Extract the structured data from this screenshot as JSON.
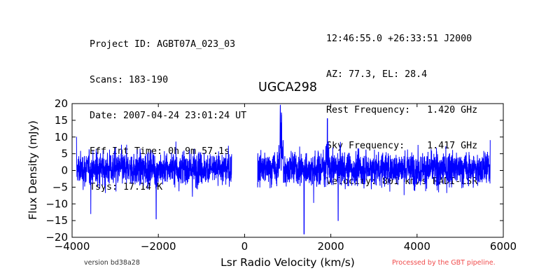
{
  "header": {
    "left": [
      "Project ID: AGBT07A_023_03",
      "Scans: 183-190",
      "Date: 2007-04-24 23:01:24 UT",
      "Eff Int Time: 0h 9m 57.1s",
      "Tsys: 17.14 K"
    ],
    "right": [
      "12:46:55.0 +26:33:51 J2000",
      "AZ: 77.3, EL: 28.4",
      "Rest Frequency:   1.420 GHz",
      "Sky Frequency:    1.417 GHz",
      "Velocity: 801 km/s RADI-LSR"
    ]
  },
  "footer": {
    "version": "version bd38a28",
    "pipeline": "Processed by the GBT pipeline."
  },
  "chart_data": {
    "type": "line",
    "title": "UGCA298",
    "xlabel": "Lsr Radio Velocity (km/s)",
    "ylabel": "Flux Density (mJy)",
    "xlim": [
      -4000,
      6000
    ],
    "ylim": [
      -20,
      20
    ],
    "xticks": [
      -4000,
      -2000,
      0,
      2000,
      4000,
      6000
    ],
    "yticks": [
      -20,
      -15,
      -10,
      -5,
      0,
      5,
      10,
      15,
      20
    ],
    "xtick_labels": [
      "−4000",
      "−2000",
      "0",
      "2000",
      "4000",
      "6000"
    ],
    "ytick_labels": [
      "−20",
      "−15",
      "−10",
      "−5",
      "0",
      "5",
      "10",
      "15",
      "20"
    ],
    "grid": false,
    "line_color": "#0000ff",
    "series": [
      {
        "segments": [
          {
            "x_start": -3900,
            "x_end": -300,
            "noise_rms_mJy": 2.5,
            "baseline_mJy": 0.5
          },
          {
            "x_start": 300,
            "x_end": 5700,
            "noise_rms_mJy": 2.5,
            "baseline_mJy": 0.5
          }
        ],
        "features": [
          {
            "x": 830,
            "y": 17
          },
          {
            "x": 860,
            "y": 16.5
          },
          {
            "x": 1380,
            "y": -19
          },
          {
            "x": 2170,
            "y": -15
          },
          {
            "x": 1920,
            "y": 15.5
          },
          {
            "x": -2050,
            "y": -14.5
          },
          {
            "x": -3900,
            "y": 10
          },
          {
            "x": 5700,
            "y": 9
          }
        ]
      }
    ]
  }
}
